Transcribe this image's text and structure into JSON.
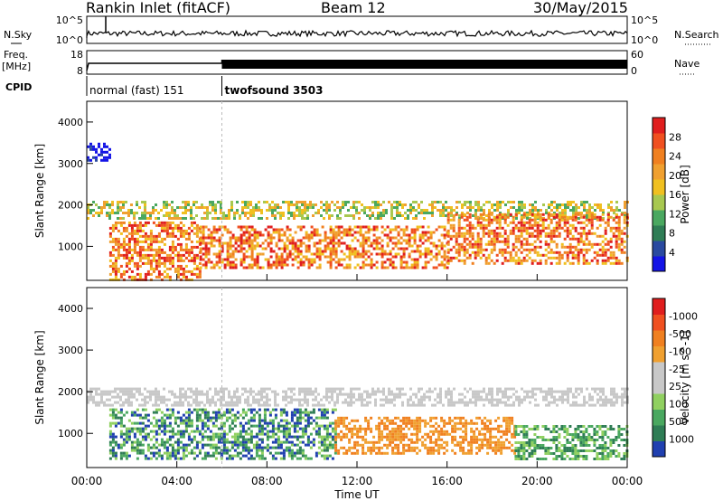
{
  "header": {
    "station": "Rankin Inlet (fitACF)",
    "beam": "Beam 12",
    "date": "30/May/2015"
  },
  "panels": {
    "nsky": {
      "label": "N.Sky",
      "ticks": [
        "10^5",
        "10^0"
      ],
      "right_label": "N.Search",
      "right_ticks": [
        "10^5",
        "10^0"
      ]
    },
    "freq": {
      "label_top": "Freq.",
      "label_unit": "[MHz]",
      "ticks": [
        "18",
        "8"
      ],
      "right_label": "Nave",
      "right_ticks": [
        "60",
        "0"
      ]
    },
    "cpid": {
      "label": "CPID",
      "modes": [
        {
          "name": "normal (fast) 151",
          "start": "00:00",
          "end": "06:00"
        },
        {
          "name": "twofsound 3503",
          "start": "06:00",
          "end": "24:00"
        }
      ]
    }
  },
  "chart_data": [
    {
      "type": "heatmap",
      "title": "",
      "ylabel": "Slant Range [km]",
      "xlabel": "",
      "ylim": [
        180,
        4500
      ],
      "y_ticks": [
        1000,
        2000,
        3000,
        4000
      ],
      "x_ticks": [
        "00:00",
        "04:00",
        "08:00",
        "12:00",
        "16:00",
        "20:00",
        "00:00"
      ],
      "colorbar": {
        "label": "Power [dB]",
        "ticks": [
          "4",
          "8",
          "12",
          "16",
          "20",
          "24",
          "28"
        ],
        "range": [
          0,
          30
        ],
        "colors": [
          "#1414e6",
          "#2a4aa0",
          "#2f7d55",
          "#4aa860",
          "#a8c850",
          "#f0c020",
          "#f0a030",
          "#f08020",
          "#f05020",
          "#e01e1e"
        ]
      },
      "echo_bands": [
        {
          "from_h": 0.0,
          "to_h": 24.0,
          "range_km": [
            1700,
            2100
          ],
          "level": "12-20"
        },
        {
          "from_h": 1.0,
          "to_h": 5.0,
          "range_km": [
            200,
            1600
          ],
          "level": "16-30"
        },
        {
          "from_h": 5.0,
          "to_h": 16.0,
          "range_km": [
            500,
            1500
          ],
          "level": "16-28"
        },
        {
          "from_h": 16.0,
          "to_h": 24.0,
          "range_km": [
            600,
            1800
          ],
          "level": "12-24"
        },
        {
          "from_h": 0.0,
          "to_h": 1.0,
          "range_km": [
            3100,
            3500
          ],
          "level": "4-8"
        }
      ]
    },
    {
      "type": "heatmap",
      "title": "",
      "ylabel": "Slant Range [km]",
      "xlabel": "Time UT",
      "ylim": [
        180,
        4500
      ],
      "y_ticks": [
        1000,
        2000,
        3000,
        4000
      ],
      "x_ticks": [
        "00:00",
        "04:00",
        "08:00",
        "12:00",
        "16:00",
        "20:00",
        "00:00"
      ],
      "colorbar": {
        "label": "Velocity [m s^-1]",
        "ticks": [
          "1000",
          "500",
          "100",
          "25",
          "-25",
          "-100",
          "-500",
          "-1000"
        ],
        "colors": [
          "#2040b0",
          "#2f7d55",
          "#4aa860",
          "#90d060",
          "#c8c8c8",
          "#c8c8c8",
          "#f0a030",
          "#f08020",
          "#f05020",
          "#e01e1e"
        ]
      },
      "echo_bands": [
        {
          "from_h": 0.0,
          "to_h": 24.0,
          "range_km": [
            1700,
            2100
          ],
          "velocity": "-25 to 25"
        },
        {
          "from_h": 1.0,
          "to_h": 11.0,
          "range_km": [
            400,
            1600
          ],
          "velocity": "100 to 1000"
        },
        {
          "from_h": 11.0,
          "to_h": 19.0,
          "range_km": [
            500,
            1400
          ],
          "velocity": "-100 to -500"
        },
        {
          "from_h": 19.0,
          "to_h": 24.0,
          "range_km": [
            400,
            1200
          ],
          "velocity": "25 to 500"
        }
      ]
    }
  ]
}
